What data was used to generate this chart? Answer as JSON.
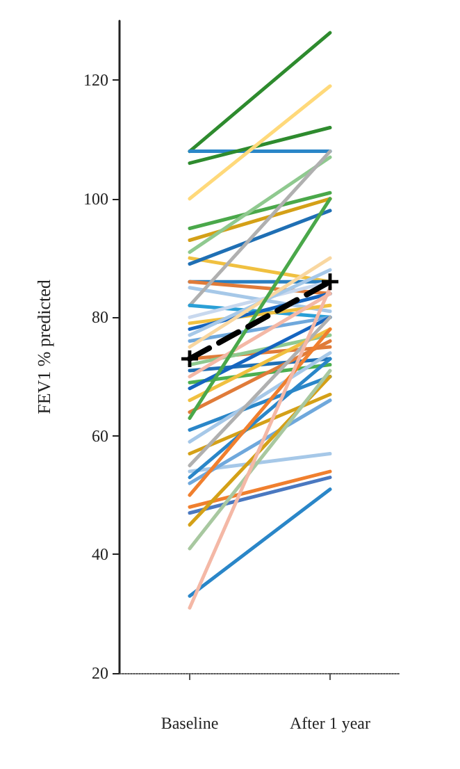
{
  "chart_data": {
    "type": "line",
    "ylabel": "FEV1 % predicted",
    "categories": [
      "Baseline",
      "After 1 year"
    ],
    "ylim": [
      20,
      130
    ],
    "yticks": [
      20,
      40,
      60,
      80,
      100,
      120
    ],
    "grid": false,
    "marker": "none",
    "line_style": "solid",
    "series": [
      {
        "color": "#2e8b2e",
        "values": [
          108,
          128
        ]
      },
      {
        "color": "#2a86c8",
        "values": [
          108,
          108
        ]
      },
      {
        "color": "#2e8b2e",
        "values": [
          106,
          112
        ]
      },
      {
        "color": "#ffd97a",
        "values": [
          100,
          119
        ]
      },
      {
        "color": "#4aa84a",
        "values": [
          95,
          101
        ]
      },
      {
        "color": "#d4a017",
        "values": [
          93,
          100
        ]
      },
      {
        "color": "#8fc98f",
        "values": [
          91,
          107
        ]
      },
      {
        "color": "#f0c040",
        "values": [
          90,
          86
        ]
      },
      {
        "color": "#1f6fb4",
        "values": [
          89,
          98
        ]
      },
      {
        "color": "#2a7fc0",
        "values": [
          86,
          86
        ]
      },
      {
        "color": "#e07b39",
        "values": [
          86,
          84
        ]
      },
      {
        "color": "#a6c8e8",
        "values": [
          85,
          81
        ]
      },
      {
        "color": "#b0b0b0",
        "values": [
          82,
          108
        ]
      },
      {
        "color": "#2a9fd6",
        "values": [
          82,
          80
        ]
      },
      {
        "color": "#c8d8ee",
        "values": [
          80,
          86
        ]
      },
      {
        "color": "#f0c040",
        "values": [
          79,
          82
        ]
      },
      {
        "color": "#1565c0",
        "values": [
          78,
          84
        ]
      },
      {
        "color": "#a6c8e8",
        "values": [
          77,
          88
        ]
      },
      {
        "color": "#6fa8dc",
        "values": [
          76,
          80
        ]
      },
      {
        "color": "#f9d7a0",
        "values": [
          75,
          90
        ]
      },
      {
        "color": "#e07b39",
        "values": [
          73,
          75
        ]
      },
      {
        "color": "#8fc98f",
        "values": [
          72,
          77
        ]
      },
      {
        "color": "#1f6fb4",
        "values": [
          71,
          73
        ]
      },
      {
        "color": "#f4b8a6",
        "values": [
          70,
          84
        ]
      },
      {
        "color": "#4caf50",
        "values": [
          69,
          72
        ]
      },
      {
        "color": "#1565c0",
        "values": [
          68,
          80
        ]
      },
      {
        "color": "#f0c040",
        "values": [
          66,
          78
        ]
      },
      {
        "color": "#e07b39",
        "values": [
          64,
          76
        ]
      },
      {
        "color": "#4aa84a",
        "values": [
          63,
          100
        ]
      },
      {
        "color": "#2a86c8",
        "values": [
          61,
          70
        ]
      },
      {
        "color": "#a6c8e8",
        "values": [
          59,
          74
        ]
      },
      {
        "color": "#d4a017",
        "values": [
          57,
          67
        ]
      },
      {
        "color": "#b0b0b0",
        "values": [
          55,
          80
        ]
      },
      {
        "color": "#a6c8e8",
        "values": [
          54,
          57
        ]
      },
      {
        "color": "#2a86c8",
        "values": [
          53,
          73
        ]
      },
      {
        "color": "#6fa8dc",
        "values": [
          52,
          66
        ]
      },
      {
        "color": "#f07f2e",
        "values": [
          50,
          78
        ]
      },
      {
        "color": "#f07f2e",
        "values": [
          48,
          54
        ]
      },
      {
        "color": "#4a78c0",
        "values": [
          47,
          53
        ]
      },
      {
        "color": "#d4a017",
        "values": [
          45,
          70
        ]
      },
      {
        "color": "#a8c8a0",
        "values": [
          41,
          71
        ]
      },
      {
        "color": "#2a86c8",
        "values": [
          33,
          51
        ]
      },
      {
        "color": "#f4b8a6",
        "values": [
          31,
          85
        ]
      },
      {
        "color": "#000000",
        "values": [
          73,
          86
        ],
        "line_style": "dashed",
        "marker": "cross"
      }
    ]
  }
}
